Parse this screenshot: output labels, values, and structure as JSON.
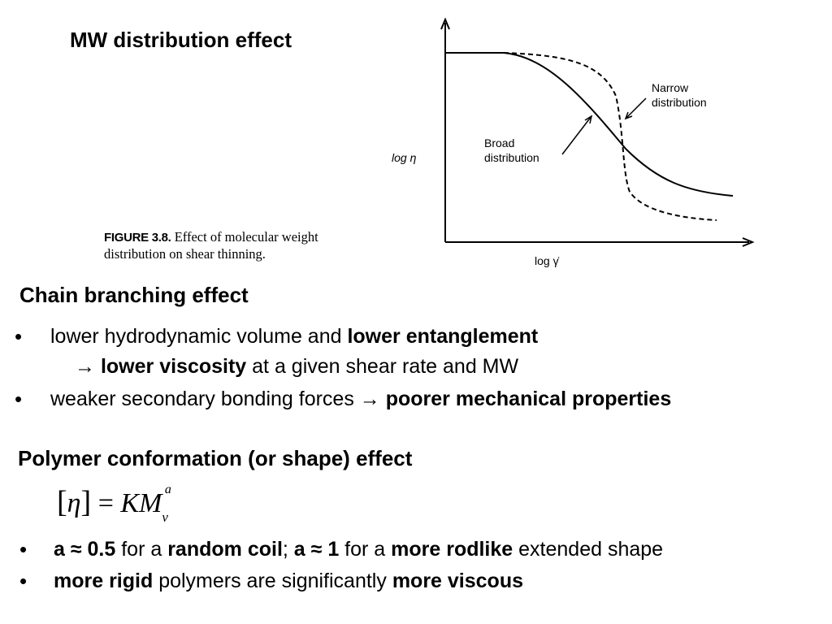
{
  "title": "MW distribution effect",
  "figure": {
    "caption_label": "FIGURE 3.8.",
    "caption_text": "Effect of molecular weight distribution on shear thinning.",
    "ylabel": "log η",
    "xlabel": "log γ̇",
    "label_narrow": [
      "Narrow",
      "distribution"
    ],
    "label_broad": [
      "Broad",
      "distribution"
    ]
  },
  "section_branching": {
    "heading": "Chain branching effect",
    "b1_text1": "lower hydrodynamic volume and ",
    "b1_bold1": "lower entanglement",
    "b1_arrow": "→ ",
    "b1_bold2": "lower viscosity",
    "b1_text2": " at a given shear rate and MW",
    "b2_text1": "weaker secondary bonding forces ",
    "b2_arrow": "→ ",
    "b2_bold1": "poorer mechanical properties"
  },
  "section_conformation": {
    "heading": "Polymer conformation (or shape) effect",
    "equation": {
      "lhs_open": "[",
      "lhs_eta": "η",
      "lhs_close": "]",
      "equals": " = ",
      "rhs": "KM",
      "sub": "v",
      "sup": "a"
    },
    "b1_bold1": "a ≈ 0.5",
    "b1_text1": " for a ",
    "b1_bold2": "random coil",
    "b1_text2": "; ",
    "b1_bold3": "a ≈ 1",
    "b1_text3": " for a ",
    "b1_bold4": "more rodlike",
    "b1_text4": " extended shape",
    "b2_bold1": "more rigid",
    "b2_text1": " polymers are significantly ",
    "b2_bold2": "more viscous"
  },
  "chart_data": {
    "type": "line",
    "title": "",
    "xlabel": "log γ̇",
    "ylabel": "log η",
    "series": [
      {
        "name": "Broad distribution"
      },
      {
        "name": "Narrow distribution"
      }
    ]
  }
}
